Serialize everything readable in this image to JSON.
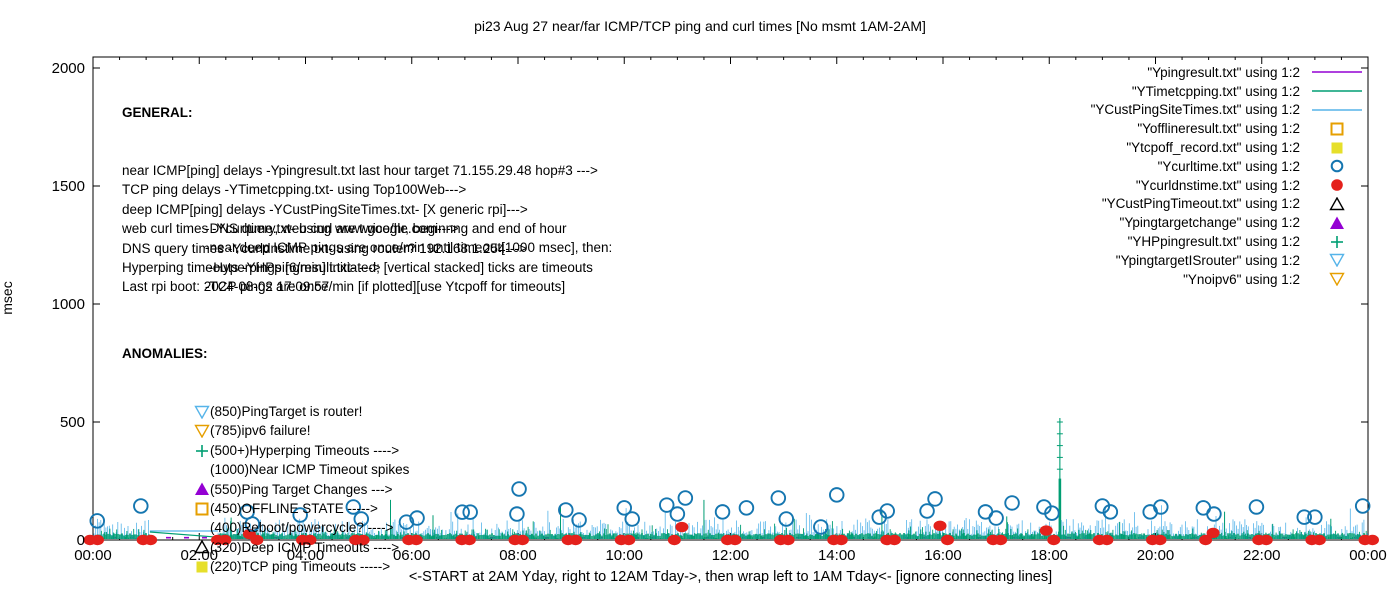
{
  "chart_data": {
    "type": "line",
    "title": "pi23 Aug 27  near/far ICMP/TCP ping and curl times [No msmt 1AM-2AM]",
    "ylabel": "msec",
    "xlabel": "<-START at 2AM Yday, right to 12AM Tday->, then wrap left to 1AM Tday<- [ignore connecting lines]",
    "x_ticks": [
      "00:00",
      "02:00",
      "04:00",
      "06:00",
      "08:00",
      "10:00",
      "12:00",
      "14:00",
      "16:00",
      "18:00",
      "20:00",
      "22:00",
      "00:00"
    ],
    "y_ticks": [
      0,
      500,
      1000,
      1500,
      2000
    ],
    "ylim": [
      0,
      2047
    ],
    "x_span_hours": 24,
    "grid": false,
    "legend_position": "top-right-inside",
    "colors": {
      "purple": "#9400d3",
      "teal": "#009e73",
      "lightblue": "#56b4e9",
      "orange": "#e69f00",
      "yellow": "#e6df2a",
      "blue": "#1576b0",
      "red": "#e4211c",
      "black": "#000000"
    },
    "legend": [
      {
        "label": "\"Ypingresult.txt\" using 1:2",
        "marker": "line",
        "color": "purple"
      },
      {
        "label": "\"YTimetcpping.txt\" using 1:2",
        "marker": "line",
        "color": "teal"
      },
      {
        "label": "\"YCustPingSiteTimes.txt\" using 1:2",
        "marker": "line",
        "color": "lightblue"
      },
      {
        "label": "\"Yofflineresult.txt\" using 1:2",
        "marker": "square-open",
        "color": "orange"
      },
      {
        "label": "\"Ytcpoff_record.txt\" using 1:2",
        "marker": "square-filled",
        "color": "yellow"
      },
      {
        "label": "\"Ycurltime.txt\" using 1:2",
        "marker": "circle-open",
        "color": "blue"
      },
      {
        "label": "\"Ycurldnstime.txt\" using 1:2",
        "marker": "circle-filled",
        "color": "red"
      },
      {
        "label": "\"YCustPingTimeout.txt\" using 1:2",
        "marker": "triangle-up-open",
        "color": "black"
      },
      {
        "label": "\"Ypingtargetchange\" using 1:2",
        "marker": "triangle-up-filled",
        "color": "purple"
      },
      {
        "label": "\"YHPpingresult.txt\" using 1:2",
        "marker": "plus",
        "color": "teal"
      },
      {
        "label": "\"YpingtargetISrouter\" using 1:2",
        "marker": "triangle-down-open",
        "color": "lightblue"
      },
      {
        "label": "\"Ynoipv6\" using 1:2",
        "marker": "triangle-down-open",
        "color": "orange"
      }
    ],
    "general_heading": "GENERAL:",
    "general_lines": [
      "near ICMP[ping] delays -Ypingresult.txt last hour target 71.155.29.48 hop#3 --->",
      "TCP ping delays -YTimetcpping.txt- using Top100Web--->",
      "deep ICMP[ping] delays -YCustPingSiteTimes.txt- [X generic rpi]--->",
      "web curl times -Ycurltime.txt- using www.google.com--->",
      "DNS query times -Ycurldnstime.txt- using router? 192.168.1.254--->",
      "Hyperping timeouts -YHPpingresult.txt- --->",
      "Last rpi boot: 2024-08-02 17:09:57"
    ],
    "general_indent_lines": [
      "-DNS query, web curl are twice/hr, beginnng and end of hour",
      "-near,deep ICMP pings are once/min until timeout[1000 msec], then:",
      " -Hyperpings [6/min] initiated; [vertical stacked] ticks are timeouts",
      "-TCP pings are once/min [if plotted][use Ytcpoff for timeouts]"
    ],
    "anomalies_heading": "ANOMALIES:",
    "anomalies": [
      {
        "marker": "triangle-down-open",
        "color": "lightblue",
        "text": "(850)PingTarget is router!"
      },
      {
        "marker": "triangle-down-open",
        "color": "orange",
        "text": "(785)ipv6 failure!"
      },
      {
        "marker": "plus",
        "color": "teal",
        "text": "(500+)Hyperping Timeouts ---->"
      },
      {
        "marker": null,
        "color": null,
        "text": "(1000)Near ICMP Timeout spikes"
      },
      {
        "marker": "triangle-up-filled",
        "color": "purple",
        "text": "(550)Ping Target Changes --->"
      },
      {
        "marker": "square-open",
        "color": "orange",
        "text": "(450)OFFLINE STATE ----->"
      },
      {
        "marker": null,
        "color": null,
        "text": "(400)Reboot/powercycle? ---->"
      },
      {
        "marker": "triangle-up-open",
        "color": "black",
        "text": "(320)Deep ICMP Timeouts ---->"
      },
      {
        "marker": "square-filled",
        "color": "yellow",
        "text": "(220)TCP ping Timeouts ----->"
      }
    ],
    "no_measurement_gap": {
      "from_hour": 1.07,
      "to_hour": 2.35
    },
    "series_points": {
      "curl_circles_h_msec": [
        [
          0.08,
          81
        ],
        [
          0.9,
          144
        ],
        [
          2.9,
          119
        ],
        [
          3.0,
          68
        ],
        [
          3.9,
          106
        ],
        [
          4.9,
          140
        ],
        [
          5.05,
          89
        ],
        [
          5.9,
          76
        ],
        [
          6.1,
          93
        ],
        [
          6.95,
          118
        ],
        [
          7.1,
          118
        ],
        [
          7.98,
          110
        ],
        [
          8.02,
          216
        ],
        [
          8.9,
          127
        ],
        [
          9.15,
          85
        ],
        [
          10.0,
          136
        ],
        [
          10.15,
          89
        ],
        [
          10.8,
          148
        ],
        [
          11.0,
          110
        ],
        [
          11.15,
          178
        ],
        [
          11.85,
          119
        ],
        [
          12.3,
          136
        ],
        [
          12.9,
          178
        ],
        [
          13.05,
          89
        ],
        [
          13.7,
          55
        ],
        [
          14.0,
          191
        ],
        [
          14.8,
          97
        ],
        [
          14.95,
          123
        ],
        [
          15.7,
          123
        ],
        [
          15.85,
          174
        ],
        [
          16.8,
          119
        ],
        [
          17.0,
          93
        ],
        [
          17.3,
          157
        ],
        [
          17.9,
          140
        ],
        [
          18.05,
          114
        ],
        [
          19.0,
          144
        ],
        [
          19.15,
          119
        ],
        [
          19.9,
          119
        ],
        [
          20.1,
          140
        ],
        [
          20.9,
          136
        ],
        [
          21.1,
          110
        ],
        [
          21.9,
          140
        ],
        [
          22.8,
          97
        ],
        [
          23.0,
          97
        ],
        [
          23.9,
          144
        ]
      ],
      "dns_dot_pairs_h_r1_r2_msec": [
        [
          0,
          0,
          0
        ],
        [
          1,
          0,
          0
        ],
        [
          2.4,
          0,
          0
        ],
        [
          3,
          25,
          0
        ],
        [
          4,
          0,
          0
        ],
        [
          5,
          0,
          0
        ],
        [
          6,
          0,
          0
        ],
        [
          7,
          0,
          0
        ],
        [
          8,
          0,
          0
        ],
        [
          9,
          0,
          0
        ],
        [
          10,
          0,
          0
        ],
        [
          11,
          0,
          55
        ],
        [
          12,
          0,
          0
        ],
        [
          13,
          0,
          0
        ],
        [
          14,
          0,
          0
        ],
        [
          15,
          0,
          0
        ],
        [
          16,
          60,
          0
        ],
        [
          17,
          0,
          0
        ],
        [
          18,
          40,
          0
        ],
        [
          19,
          0,
          0
        ],
        [
          20,
          0,
          0
        ],
        [
          21,
          0,
          30
        ],
        [
          22,
          0,
          0
        ],
        [
          23,
          0,
          0
        ],
        [
          24,
          0,
          0
        ]
      ],
      "tcp_spikes_h_msec": [
        [
          2.6,
          95
        ],
        [
          5.6,
          170
        ],
        [
          6.4,
          105
        ],
        [
          8.8,
          150
        ],
        [
          11.5,
          170
        ],
        [
          13.2,
          90
        ],
        [
          14.85,
          130
        ],
        [
          17.2,
          100
        ],
        [
          21.3,
          120
        ],
        [
          23.3,
          90
        ]
      ],
      "hyperping_big_spike": {
        "hour": 18.2,
        "thick_to_msec": 260,
        "thin_to_msec": 517
      }
    },
    "noise_bands_msec": {
      "lightblue_deep_icmp": {
        "min": 20,
        "max": 110
      },
      "teal_tcp_ping": {
        "min": 5,
        "max": 70
      },
      "purple_near_icmp_baseline": 10
    }
  }
}
